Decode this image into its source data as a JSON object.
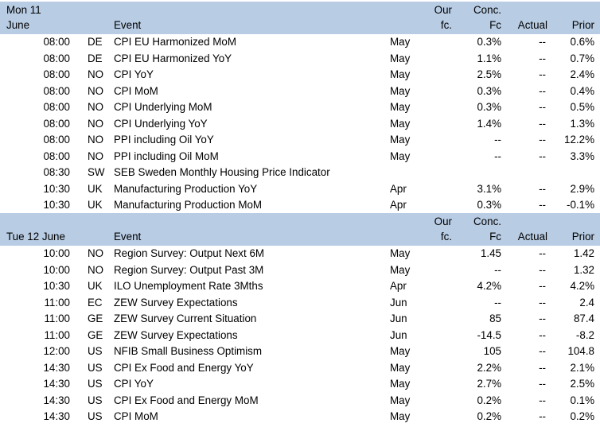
{
  "headers": {
    "event": "Event",
    "our_fc_top": "Our",
    "our_fc_bottom": "fc.",
    "conc_top": "Conc.",
    "conc_bottom": "Fc",
    "actual": "Actual",
    "prior": "Prior"
  },
  "days": [
    {
      "date_top": "Mon 11",
      "date_bottom": "June",
      "rows": [
        {
          "time": "08:00",
          "country": "DE",
          "event": "CPI EU Harmonized MoM",
          "period": "May",
          "our_fc": "",
          "conc_fc": "0.3%",
          "actual": "--",
          "prior": "0.6%"
        },
        {
          "time": "08:00",
          "country": "DE",
          "event": "CPI EU Harmonized YoY",
          "period": "May",
          "our_fc": "",
          "conc_fc": "1.1%",
          "actual": "--",
          "prior": "0.7%"
        },
        {
          "time": "08:00",
          "country": "NO",
          "event": "CPI YoY",
          "period": "May",
          "our_fc": "",
          "conc_fc": "2.5%",
          "actual": "--",
          "prior": "2.4%"
        },
        {
          "time": "08:00",
          "country": "NO",
          "event": "CPI MoM",
          "period": "May",
          "our_fc": "",
          "conc_fc": "0.3%",
          "actual": "--",
          "prior": "0.4%"
        },
        {
          "time": "08:00",
          "country": "NO",
          "event": "CPI Underlying MoM",
          "period": "May",
          "our_fc": "",
          "conc_fc": "0.3%",
          "actual": "--",
          "prior": "0.5%"
        },
        {
          "time": "08:00",
          "country": "NO",
          "event": "CPI Underlying YoY",
          "period": "May",
          "our_fc": "",
          "conc_fc": "1.4%",
          "actual": "--",
          "prior": "1.3%"
        },
        {
          "time": "08:00",
          "country": "NO",
          "event": "PPI including Oil YoY",
          "period": "May",
          "our_fc": "",
          "conc_fc": "--",
          "actual": "--",
          "prior": "12.2%"
        },
        {
          "time": "08:00",
          "country": "NO",
          "event": "PPI including Oil MoM",
          "period": "May",
          "our_fc": "",
          "conc_fc": "--",
          "actual": "--",
          "prior": "3.3%"
        },
        {
          "time": "08:30",
          "country": "SW",
          "event": "SEB Sweden Monthly Housing Price Indicator",
          "period": "",
          "our_fc": "",
          "conc_fc": "",
          "actual": "",
          "prior": ""
        },
        {
          "time": "10:30",
          "country": "UK",
          "event": "Manufacturing Production YoY",
          "period": "Apr",
          "our_fc": "",
          "conc_fc": "3.1%",
          "actual": "--",
          "prior": "2.9%"
        },
        {
          "time": "10:30",
          "country": "UK",
          "event": "Manufacturing Production MoM",
          "period": "Apr",
          "our_fc": "",
          "conc_fc": "0.3%",
          "actual": "--",
          "prior": "-0.1%"
        }
      ]
    },
    {
      "date_top": "",
      "date_bottom": "Tue 12 June",
      "rows": [
        {
          "time": "10:00",
          "country": "NO",
          "event": "Region Survey: Output Next 6M",
          "period": "May",
          "our_fc": "",
          "conc_fc": "1.45",
          "actual": "--",
          "prior": "1.42"
        },
        {
          "time": "10:00",
          "country": "NO",
          "event": "Region Survey: Output Past 3M",
          "period": "May",
          "our_fc": "",
          "conc_fc": "--",
          "actual": "--",
          "prior": "1.32"
        },
        {
          "time": "10:30",
          "country": "UK",
          "event": "ILO Unemployment Rate 3Mths",
          "period": "Apr",
          "our_fc": "",
          "conc_fc": "4.2%",
          "actual": "--",
          "prior": "4.2%"
        },
        {
          "time": "11:00",
          "country": "EC",
          "event": "ZEW Survey Expectations",
          "period": "Jun",
          "our_fc": "",
          "conc_fc": "--",
          "actual": "--",
          "prior": "2.4"
        },
        {
          "time": "11:00",
          "country": "GE",
          "event": "ZEW Survey Current Situation",
          "period": "Jun",
          "our_fc": "",
          "conc_fc": "85",
          "actual": "--",
          "prior": "87.4"
        },
        {
          "time": "11:00",
          "country": "GE",
          "event": "ZEW Survey Expectations",
          "period": "Jun",
          "our_fc": "",
          "conc_fc": "-14.5",
          "actual": "--",
          "prior": "-8.2"
        },
        {
          "time": "12:00",
          "country": "US",
          "event": "NFIB Small Business Optimism",
          "period": "May",
          "our_fc": "",
          "conc_fc": "105",
          "actual": "--",
          "prior": "104.8"
        },
        {
          "time": "14:30",
          "country": "US",
          "event": "CPI Ex Food and Energy YoY",
          "period": "May",
          "our_fc": "",
          "conc_fc": "2.2%",
          "actual": "--",
          "prior": "2.1%"
        },
        {
          "time": "14:30",
          "country": "US",
          "event": "CPI YoY",
          "period": "May",
          "our_fc": "",
          "conc_fc": "2.7%",
          "actual": "--",
          "prior": "2.5%"
        },
        {
          "time": "14:30",
          "country": "US",
          "event": "CPI Ex Food and Energy MoM",
          "period": "May",
          "our_fc": "",
          "conc_fc": "0.2%",
          "actual": "--",
          "prior": "0.1%"
        },
        {
          "time": "14:30",
          "country": "US",
          "event": "CPI MoM",
          "period": "May",
          "our_fc": "",
          "conc_fc": "0.2%",
          "actual": "--",
          "prior": "0.2%"
        }
      ]
    }
  ]
}
